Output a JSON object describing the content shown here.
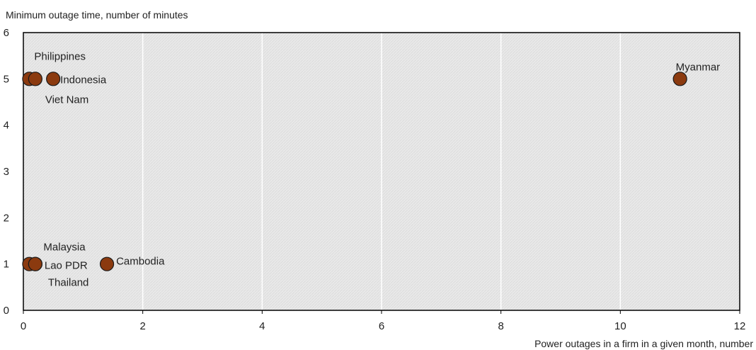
{
  "chart_data": {
    "type": "scatter",
    "ylabel": "Minimum outage time, number of minutes",
    "xlabel": "Power outages in a firm in a given month, number",
    "xlim": [
      0,
      12
    ],
    "ylim": [
      0,
      6
    ],
    "x_ticks": [
      0,
      2,
      4,
      6,
      8,
      10,
      12
    ],
    "y_ticks": [
      0,
      1,
      2,
      3,
      4,
      5,
      6
    ],
    "grid": "vertical",
    "colors": {
      "marker_fill": "#8B3A0F",
      "marker_stroke": "#1a1a1a",
      "gridline": "#ffffff",
      "frame": "#000000"
    },
    "points": [
      {
        "label": "Philippines",
        "x": 0.1,
        "y": 5
      },
      {
        "label": "Viet Nam",
        "x": 0.2,
        "y": 5
      },
      {
        "label": "Indonesia",
        "x": 0.5,
        "y": 5
      },
      {
        "label": "Myanmar",
        "x": 11.0,
        "y": 5
      },
      {
        "label": "Malaysia",
        "x": 0.1,
        "y": 1
      },
      {
        "label": "Thailand",
        "x": 0.2,
        "y": 1
      },
      {
        "label": "Lao PDR",
        "x": 0.2,
        "y": 1
      },
      {
        "label": "Cambodia",
        "x": 1.4,
        "y": 1
      }
    ]
  }
}
